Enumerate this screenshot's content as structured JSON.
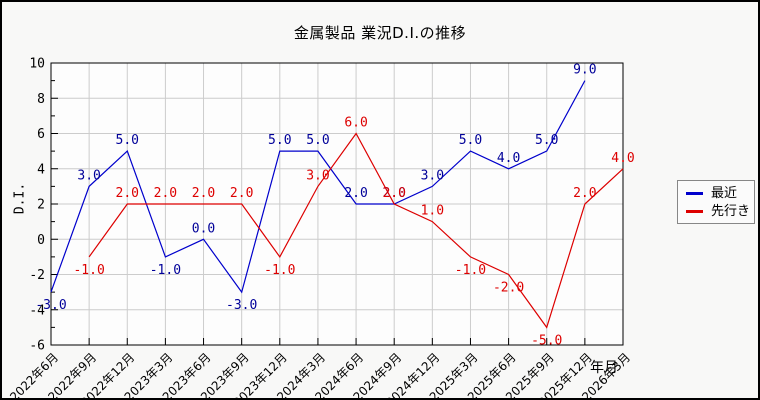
{
  "title": "金属製品 業況D.I.の推移",
  "y_axis": {
    "label": "D.I.",
    "ticks": [
      -6,
      -4,
      -2,
      0,
      2,
      4,
      6,
      8,
      10
    ]
  },
  "x_axis": {
    "label": "年月"
  },
  "legend": {
    "items": [
      {
        "label": "最近",
        "color": "#0000cc"
      },
      {
        "label": "先行き",
        "color": "#dd0000"
      }
    ]
  },
  "chart_data": {
    "type": "line",
    "title": "金属製品 業況D.I.の推移",
    "xlabel": "年月",
    "ylabel": "D.I.",
    "ylim": [
      -6,
      10
    ],
    "ytick_step": 2,
    "grid": true,
    "legend_position": "outside-right",
    "point_labels": true,
    "label_format": "one-decimal",
    "categories": [
      "2022年6月",
      "2022年9月",
      "2022年12月",
      "2023年3月",
      "2023年6月",
      "2023年9月",
      "2023年12月",
      "2024年3月",
      "2024年6月",
      "2024年9月",
      "2024年12月",
      "2025年3月",
      "2025年6月",
      "2025年9月",
      "2025年12月",
      "2026年3月"
    ],
    "series": [
      {
        "name": "最近",
        "color": "#0000cc",
        "label_color": "#000099",
        "values": [
          -3.0,
          3.0,
          5.0,
          -1.0,
          0.0,
          -3.0,
          5.0,
          5.0,
          2.0,
          2.0,
          3.0,
          5.0,
          4.0,
          5.0,
          9.0,
          null
        ]
      },
      {
        "name": "先行き",
        "color": "#dd0000",
        "label_color": "#dd0000",
        "values": [
          null,
          -1.0,
          2.0,
          2.0,
          2.0,
          2.0,
          -1.0,
          3.0,
          6.0,
          2.0,
          1.0,
          -1.0,
          -2.0,
          -5.0,
          2.0,
          4.0
        ]
      }
    ]
  },
  "colors": {
    "background": "#f8f8f7",
    "plot_background": "#fdfdfd",
    "grid": "#cccccc",
    "frame": "#000000"
  }
}
